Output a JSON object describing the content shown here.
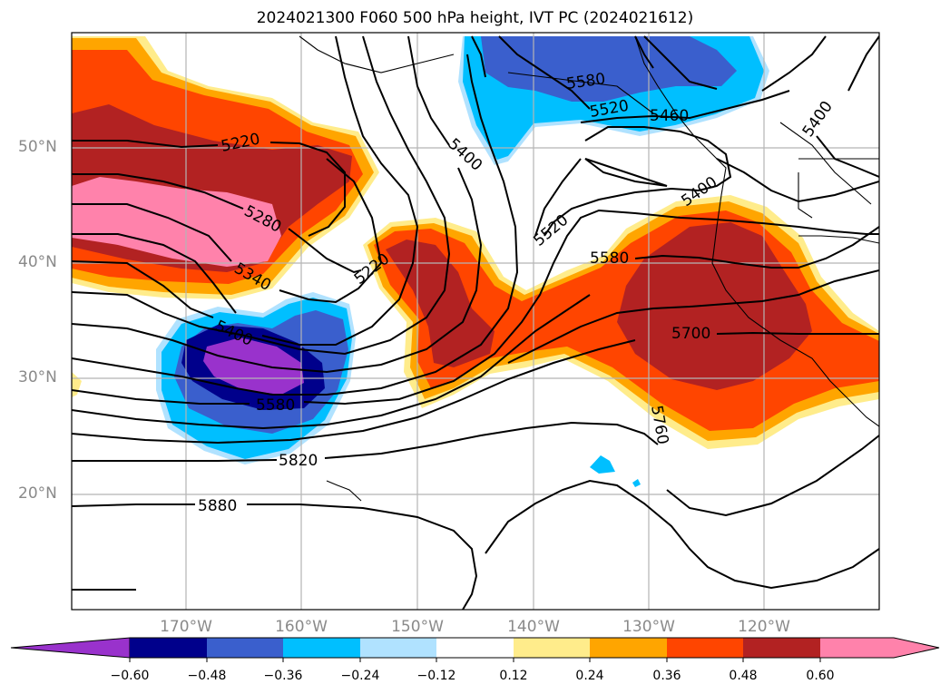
{
  "title": "2024021300 F060 500 hPa height, IVT PC (2024021612)",
  "lat_labels": [
    "50°N",
    "40°N",
    "30°N",
    "20°N"
  ],
  "lon_labels": [
    "170°W",
    "160°W",
    "150°W",
    "140°W",
    "130°W",
    "120°W"
  ],
  "contour_labels": [
    "5220",
    "5280",
    "5340",
    "5400",
    "5460",
    "5520",
    "5580",
    "5640",
    "5700",
    "5760",
    "5820",
    "5880"
  ],
  "colorbar": {
    "ticks": [
      "−0.60",
      "−0.48",
      "−0.36",
      "−0.24",
      "−0.12",
      "0.12",
      "0.24",
      "0.36",
      "0.48",
      "0.60"
    ],
    "colors": [
      "#9932cc",
      "#00008b",
      "#3a5fcd",
      "#00bfff",
      "#b0e2ff",
      "#ffffff",
      "#ffec8b",
      "#ffa500",
      "#ff4500",
      "#b22222",
      "#ff82ab"
    ]
  }
}
